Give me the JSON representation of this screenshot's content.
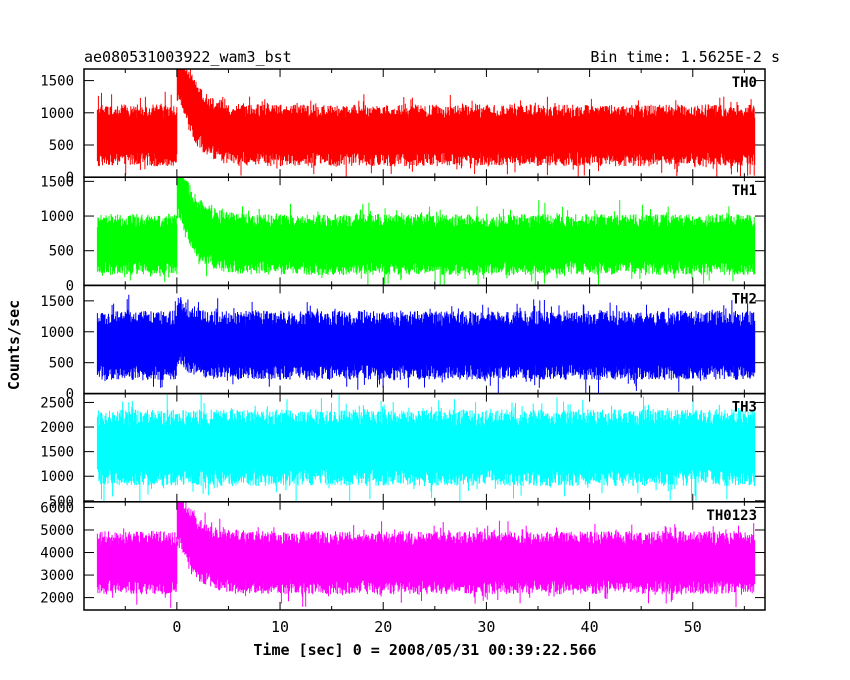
{
  "header": {
    "title": "ae080531003922_wam3_bst",
    "bin_time": "Bin time: 1.5625E-2 s"
  },
  "chart_data": {
    "type": "line",
    "xlabel": "Time [sec] 0 = 2008/05/31 00:39:22.566",
    "ylabel": "Counts/sec",
    "xlim": [
      -9,
      57
    ],
    "x_ticks": [
      0,
      10,
      20,
      30,
      40,
      50
    ],
    "data_x_range": [
      -7.7,
      56
    ],
    "bin_time_s": 0.015625,
    "panels": [
      {
        "name": "TH0",
        "color": "#ff0000",
        "ylim": [
          0,
          1680
        ],
        "y_ticks": [
          0,
          500,
          1000,
          1500
        ],
        "baseline_counts": 650,
        "noise_amplitude": 480,
        "burst": {
          "peak_time": 0.3,
          "peak_counts": 1000,
          "decay_s": 1.5
        }
      },
      {
        "name": "TH1",
        "color": "#00ff00",
        "ylim": [
          0,
          1560
        ],
        "y_ticks": [
          0,
          500,
          1000,
          1500
        ],
        "baseline_counts": 590,
        "noise_amplitude": 440,
        "burst": {
          "peak_time": 0.3,
          "peak_counts": 800,
          "decay_s": 1.5
        }
      },
      {
        "name": "TH2",
        "color": "#0000ff",
        "ylim": [
          0,
          1750
        ],
        "y_ticks": [
          0,
          500,
          1000,
          1500
        ],
        "baseline_counts": 780,
        "noise_amplitude": 560,
        "burst": {
          "peak_time": 0.3,
          "peak_counts": 250,
          "decay_s": 1.2
        }
      },
      {
        "name": "TH3",
        "color": "#00ffff",
        "ylim": [
          480,
          2680
        ],
        "y_ticks": [
          500,
          1000,
          1500,
          2000,
          2500
        ],
        "baseline_counts": 1580,
        "noise_amplitude": 780,
        "burst": {
          "peak_time": 0.3,
          "peak_counts": 0,
          "decay_s": 1.0
        }
      },
      {
        "name": "TH0123",
        "color": "#ff00ff",
        "ylim": [
          1450,
          6250
        ],
        "y_ticks": [
          2000,
          3000,
          4000,
          5000,
          6000
        ],
        "baseline_counts": 3550,
        "noise_amplitude": 1400,
        "burst": {
          "peak_time": 0.3,
          "peak_counts": 2000,
          "decay_s": 1.5
        }
      }
    ]
  }
}
